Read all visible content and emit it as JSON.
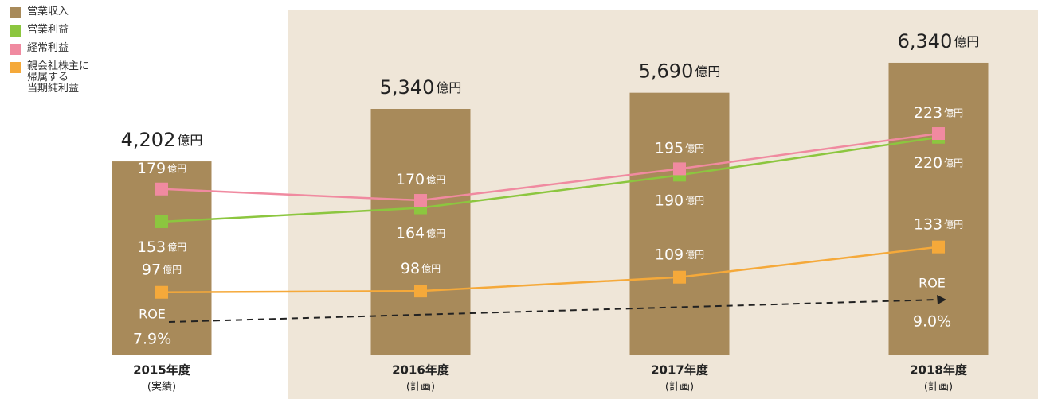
{
  "chart_data": {
    "type": "bar",
    "categories": [
      "2015年度",
      "2016年度",
      "2017年度",
      "2018年度"
    ],
    "category_notes": [
      "(実績)",
      "(計画)",
      "(計画)",
      "(計画)"
    ],
    "unit": "億円",
    "ylim": [
      0,
      7700
    ],
    "y2lim": [
      47,
      329
    ],
    "series": [
      {
        "name": "営業収入",
        "type": "bar",
        "color": "#a88a5a",
        "values": [
          4202,
          5340,
          5690,
          6340
        ],
        "value_labels": [
          "4,202",
          "5,340",
          "5,690",
          "6,340"
        ]
      },
      {
        "name": "営業利益",
        "type": "line",
        "axis": "y2",
        "color": "#8cc63f",
        "values": [
          153,
          164,
          190,
          220
        ]
      },
      {
        "name": "経常利益",
        "type": "line",
        "axis": "y2",
        "color": "#f08aa0",
        "values": [
          179,
          170,
          195,
          223
        ]
      },
      {
        "name": "親会社株主に\n帰属する\n当期純利益",
        "type": "line",
        "axis": "y2",
        "color": "#f5a93a",
        "values": [
          97,
          98,
          109,
          133
        ]
      }
    ],
    "roe": {
      "label": "ROE",
      "values": [
        7.9,
        9.0
      ],
      "value_labels": [
        "7.9%",
        "9.0%"
      ]
    }
  }
}
